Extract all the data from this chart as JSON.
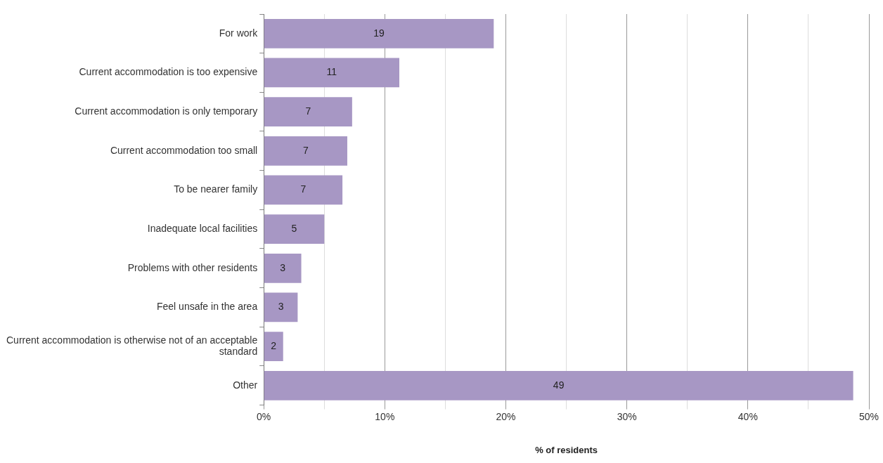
{
  "chart_data": {
    "type": "bar",
    "orientation": "horizontal",
    "xlabel": "% of residents",
    "categories": [
      "For work",
      "Current accommodation is too expensive",
      "Current accommodation is only temporary",
      "Current accommodation too small",
      "To be nearer family",
      "Inadequate local facilities",
      "Problems with other residents",
      "Feel unsafe in the area",
      "Current accommodation is otherwise not of an acceptable standard",
      "Other"
    ],
    "values": [
      19.0,
      11.2,
      7.3,
      6.9,
      6.5,
      5.0,
      3.1,
      2.8,
      1.6,
      48.7
    ],
    "value_labels": [
      "19",
      "11",
      "7",
      "7",
      "7",
      "5",
      "3",
      "3",
      "2",
      "49"
    ],
    "color": "#a797c4",
    "xlim": [
      0,
      50
    ],
    "xticks": [
      {
        "value": 0,
        "label": "0%"
      },
      {
        "value": 5,
        "label": null
      },
      {
        "value": 10,
        "label": "10%"
      },
      {
        "value": 15,
        "label": null
      },
      {
        "value": 20,
        "label": "20%"
      },
      {
        "value": 25,
        "label": null
      },
      {
        "value": 30,
        "label": "30%"
      },
      {
        "value": 35,
        "label": null
      },
      {
        "value": 40,
        "label": "40%"
      },
      {
        "value": 45,
        "label": null
      },
      {
        "value": 50,
        "label": "50%"
      }
    ],
    "grid": "x",
    "legend": false
  }
}
